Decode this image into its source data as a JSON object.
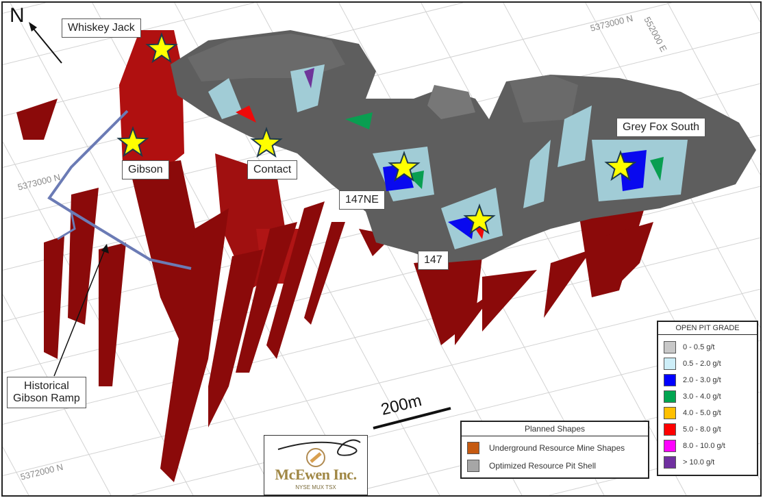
{
  "north_label": "N",
  "grid_labels": [
    "5373000 N",
    "552000 E",
    "5373000 N",
    "5372000 N"
  ],
  "callouts": {
    "whiskey_jack": "Whiskey Jack",
    "gibson": "Gibson",
    "contact": "Contact",
    "ne147": "147NE",
    "p147": "147",
    "grey_fox_south": "Grey Fox South",
    "ramp": "Historical\nGibson Ramp"
  },
  "scale_bar": "200m",
  "open_pit_grade": {
    "title": "OPEN PIT GRADE",
    "items": [
      {
        "label": "0 - 0.5 g/t",
        "color": "#c8c8c8"
      },
      {
        "label": "0.5 - 2.0 g/t",
        "color": "#cdeef8"
      },
      {
        "label": "2.0 - 3.0 g/t",
        "color": "#0000ff"
      },
      {
        "label": "3.0 - 4.0 g/t",
        "color": "#00a550"
      },
      {
        "label": "4.0 - 5.0 g/t",
        "color": "#ffc000"
      },
      {
        "label": "5.0 - 8.0 g/t",
        "color": "#ff0000"
      },
      {
        "label": "8.0 - 10.0 g/t",
        "color": "#ff00ff"
      },
      {
        "label": "> 10.0 g/t",
        "color": "#7030a0"
      }
    ]
  },
  "planned_shapes": {
    "title": "Planned Shapes",
    "items": [
      {
        "label": "Underground Resource Mine Shapes",
        "color": "#c55a11"
      },
      {
        "label": "Optimized Resource Pit Shell",
        "color": "#a6a6a6"
      }
    ]
  },
  "logo": {
    "name": "McEwen Inc.",
    "tickers": "NYSE  MUX  TSX"
  },
  "colors": {
    "underground": "#8b0a0a",
    "pit_shell": "#5e5e5e",
    "ramp": "#6b7bb5",
    "star": "#ffff00"
  }
}
